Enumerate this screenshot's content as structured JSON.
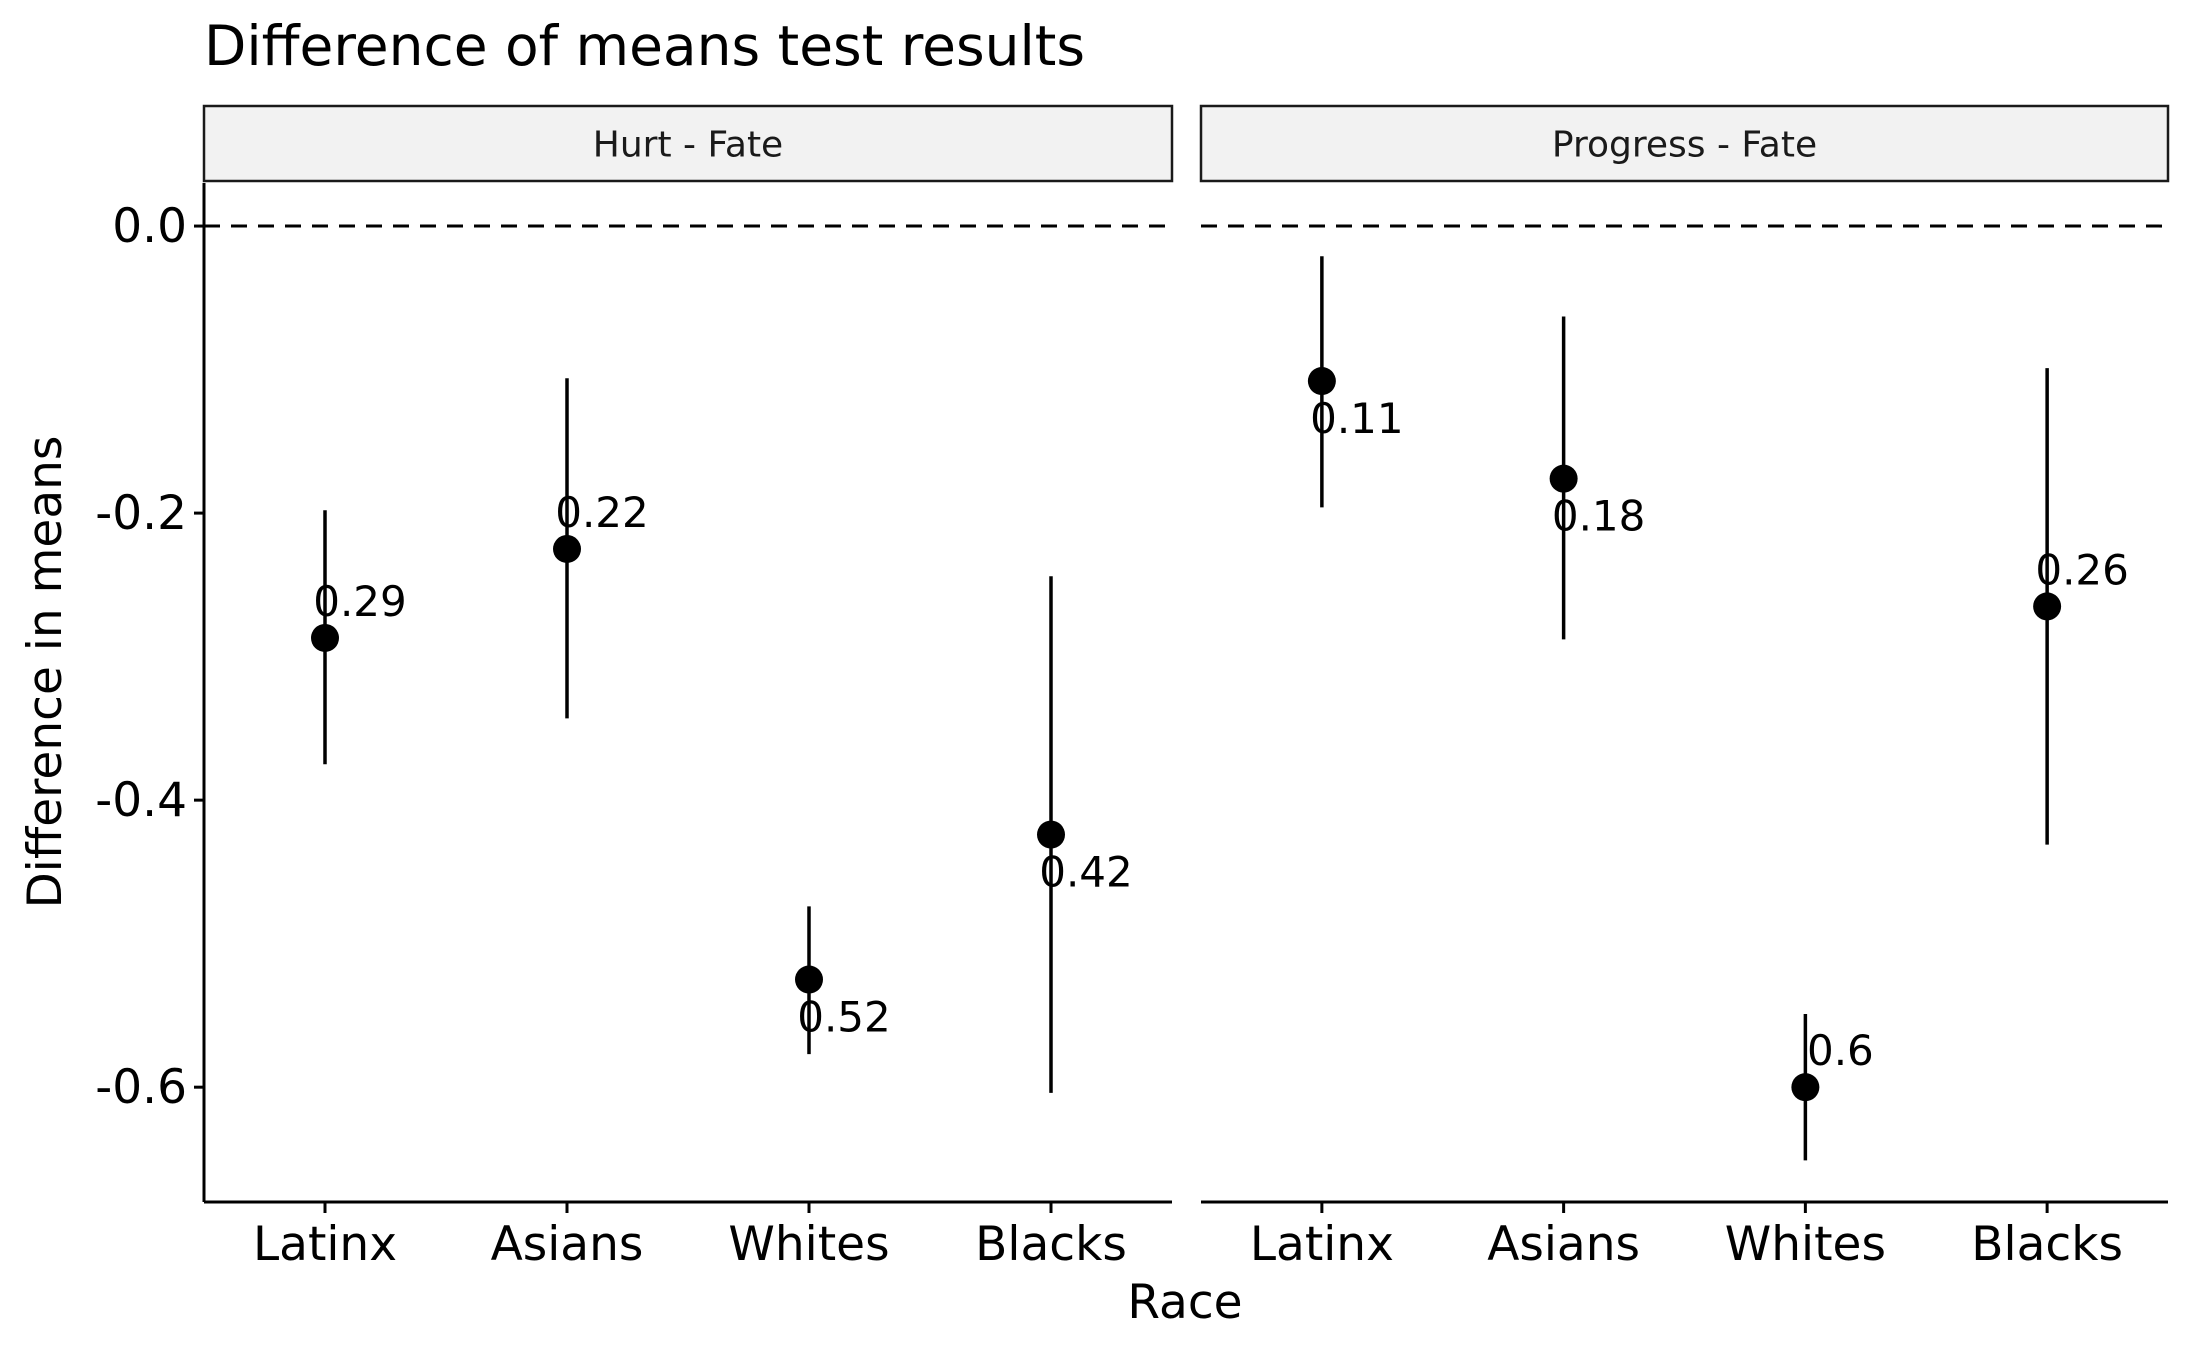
{
  "chart_data": {
    "type": "scatter",
    "title": "Difference of means test results",
    "xlabel": "Race",
    "ylabel": "Difference in means",
    "categories": [
      "Latinx",
      "Asians",
      "Whites",
      "Blacks"
    ],
    "ylim": [
      -0.68,
      0.03
    ],
    "yticks": [
      0.0,
      -0.2,
      -0.4,
      -0.6
    ],
    "ytick_labels": [
      "0.0",
      "-0.2",
      "-0.4",
      "-0.6"
    ],
    "reference_line": 0.0,
    "grid": false,
    "legend": "none",
    "panels": [
      {
        "name": "Hurt - Fate",
        "points": [
          {
            "category": "Latinx",
            "y": -0.287,
            "lower": -0.375,
            "upper": -0.198,
            "label": "0.29",
            "label_pos": "above"
          },
          {
            "category": "Asians",
            "y": -0.225,
            "lower": -0.343,
            "upper": -0.106,
            "label": "0.22",
            "label_pos": "above"
          },
          {
            "category": "Whites",
            "y": -0.525,
            "lower": -0.577,
            "upper": -0.474,
            "label": "0.52",
            "label_pos": "below"
          },
          {
            "category": "Blacks",
            "y": -0.424,
            "lower": -0.604,
            "upper": -0.244,
            "label": "0.42",
            "label_pos": "below"
          }
        ]
      },
      {
        "name": "Progress - Fate",
        "points": [
          {
            "category": "Latinx",
            "y": -0.108,
            "lower": -0.196,
            "upper": -0.021,
            "label": "0.11",
            "label_pos": "below"
          },
          {
            "category": "Asians",
            "y": -0.176,
            "lower": -0.288,
            "upper": -0.063,
            "label": "0.18",
            "label_pos": "below"
          },
          {
            "category": "Whites",
            "y": -0.6,
            "lower": -0.651,
            "upper": -0.549,
            "label": "0.6",
            "label_pos": "above"
          },
          {
            "category": "Blacks",
            "y": -0.265,
            "lower": -0.431,
            "upper": -0.099,
            "label": "0.26",
            "label_pos": "above"
          }
        ]
      }
    ]
  }
}
